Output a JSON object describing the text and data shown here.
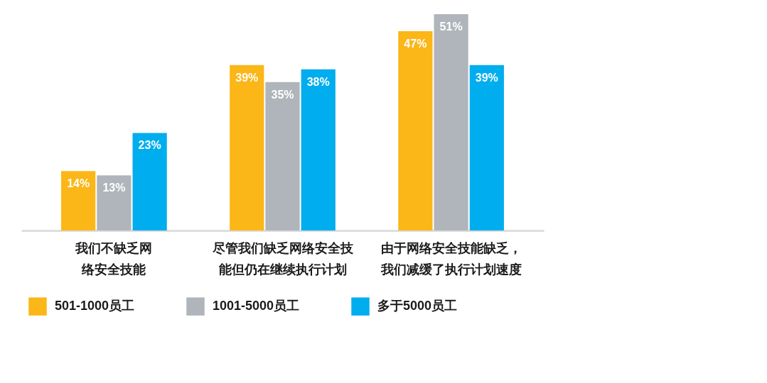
{
  "chart_data": {
    "type": "bar",
    "categories": [
      "我们不缺乏网络安全技能",
      "尽管我们缺乏网络安全技能但仍在继续执行计划",
      "由于网络安全技能缺乏，我们减缓了执行计划速度"
    ],
    "series": [
      {
        "name": "501-1000员工",
        "color": "#fbb617",
        "values": [
          14,
          39,
          47
        ],
        "value_labels": [
          "14%",
          "39%",
          "47%"
        ]
      },
      {
        "name": "1001-5000员工",
        "color": "#afb5ba",
        "values": [
          13,
          35,
          51
        ],
        "value_labels": [
          "13%",
          "35%",
          "51%"
        ]
      },
      {
        "name": "多于5000员工",
        "color": "#00adee",
        "values": [
          23,
          38,
          39
        ],
        "value_labels": [
          "23%",
          "38%",
          "39%"
        ]
      }
    ],
    "ylim": [
      0,
      51
    ],
    "tick_labels": "x",
    "legend": "bottom"
  }
}
